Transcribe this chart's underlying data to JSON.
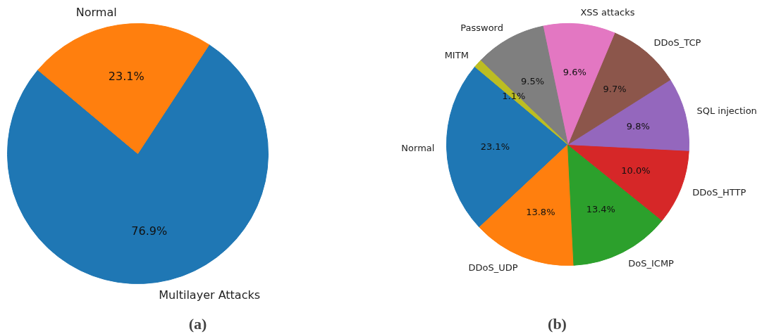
{
  "chart_data": [
    {
      "type": "pie",
      "categories": [
        "Multilayer Attacks",
        "Normal"
      ],
      "values": [
        76.9,
        23.1
      ],
      "colors": [
        "#1f77b4",
        "#ff7f0e"
      ],
      "value_labels": [
        "76.9%",
        "23.1%"
      ],
      "annotations": [
        "(a)"
      ]
    },
    {
      "type": "pie",
      "categories": [
        "Normal",
        "DDoS_UDP",
        "DoS_ICMP",
        "DDoS_HTTP",
        "SQL injection",
        "DDoS_TCP",
        "XSS attacks",
        "Password",
        "MITM"
      ],
      "values": [
        23.1,
        13.8,
        13.4,
        10.0,
        9.8,
        9.7,
        9.6,
        9.5,
        1.1
      ],
      "colors": [
        "#1f77b4",
        "#ff7f0e",
        "#2ca02c",
        "#d62728",
        "#9467bd",
        "#8c564b",
        "#e377c2",
        "#7f7f7f",
        "#bcbd22"
      ],
      "value_labels": [
        "23.1%",
        "13.8%",
        "13.4%",
        "10.0%",
        "9.8%",
        "9.7%",
        "9.6%",
        "9.5%",
        "1.1%"
      ],
      "annotations": [
        "(b)"
      ]
    }
  ]
}
